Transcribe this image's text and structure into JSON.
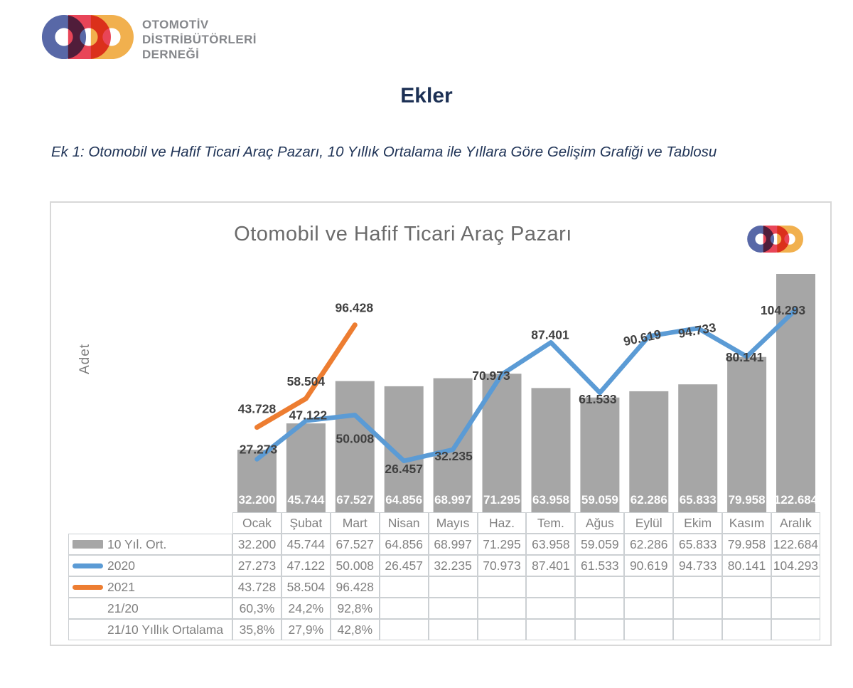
{
  "header": {
    "org_lines": [
      "OTOMOTİV",
      "DİSTRİBÜTÖRLERİ",
      "DERNEĞİ"
    ]
  },
  "brand": {
    "logo_blue": "#5868a7",
    "logo_red": "#e84558",
    "logo_yellow": "#f1b04e",
    "heading_navy": "#1c3054"
  },
  "page": {
    "title": "Ekler",
    "subtitle": "Ek 1: Otomobil ve Hafif Ticari Araç Pazarı, 10 Yıllık Ortalama ile Yıllara Göre Gelişim Grafiği ve Tablosu"
  },
  "chart_data": {
    "type": "combo",
    "title": "Otomobil ve Hafif Ticari Araç Pazarı",
    "ylabel": "Adet",
    "xlabel": "",
    "ylim": [
      0,
      130000
    ],
    "grid": false,
    "legend_position": "table-left",
    "categories": [
      "Ocak",
      "Şubat",
      "Mart",
      "Nisan",
      "Mayıs",
      "Haz.",
      "Tem.",
      "Ağus",
      "Eylül",
      "Ekim",
      "Kasım",
      "Aralık"
    ],
    "series": [
      {
        "name": "10 Yıl. Ort.",
        "type": "bar",
        "color": "#a6a6a6",
        "values": [
          32200,
          45744,
          67527,
          64856,
          68997,
          71295,
          63958,
          59059,
          62286,
          65833,
          79958,
          122684
        ],
        "labels": [
          "32.200",
          "45.744",
          "67.527",
          "64.856",
          "68.997",
          "71.295",
          "63.958",
          "59.059",
          "62.286",
          "65.833",
          "79.958",
          "122.684"
        ]
      },
      {
        "name": "2020",
        "type": "line",
        "color": "#5b9bd5",
        "values": [
          27273,
          47122,
          50008,
          26457,
          32235,
          70973,
          87401,
          61533,
          90619,
          94733,
          80141,
          104293
        ],
        "labels": [
          "27.273",
          "47.122",
          "50.008",
          "26.457",
          "32.235",
          "70.973",
          "87.401",
          "61.533",
          "90.619",
          "94.733",
          "80.141",
          "104.293"
        ]
      },
      {
        "name": "2021",
        "type": "line",
        "color": "#ed7d31",
        "values": [
          43728,
          58504,
          96428
        ],
        "labels": [
          "43.728",
          "58.504",
          "96.428"
        ]
      }
    ],
    "table_rows": [
      {
        "label": "10 Yıl. Ort.",
        "swatch": "bar",
        "values": [
          "32.200",
          "45.744",
          "67.527",
          "64.856",
          "68.997",
          "71.295",
          "63.958",
          "59.059",
          "62.286",
          "65.833",
          "79.958",
          "122.684"
        ]
      },
      {
        "label": "2020",
        "swatch": "line2020",
        "values": [
          "27.273",
          "47.122",
          "50.008",
          "26.457",
          "32.235",
          "70.973",
          "87.401",
          "61.533",
          "90.619",
          "94.733",
          "80.141",
          "104.293"
        ]
      },
      {
        "label": "2021",
        "swatch": "line2021",
        "values": [
          "43.728",
          "58.504",
          "96.428",
          "",
          "",
          "",
          "",
          "",
          "",
          "",
          "",
          ""
        ]
      },
      {
        "label": "21/20",
        "swatch": "none",
        "values": [
          "60,3%",
          "24,2%",
          "92,8%",
          "",
          "",
          "",
          "",
          "",
          "",
          "",
          "",
          ""
        ]
      },
      {
        "label": "21/10 Yıllık Ortalama",
        "swatch": "none",
        "values": [
          "35,8%",
          "27,9%",
          "42,8%",
          "",
          "",
          "",
          "",
          "",
          "",
          "",
          "",
          ""
        ]
      }
    ]
  }
}
